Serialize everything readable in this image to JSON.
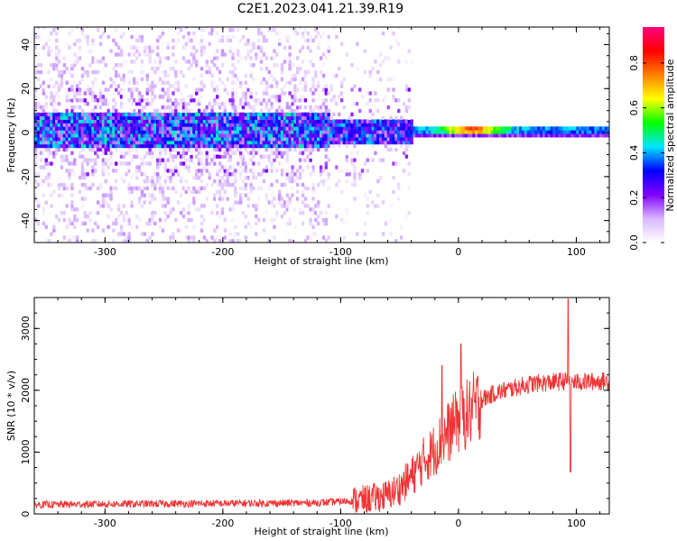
{
  "title": "C2E1.2023.041.21.39.R19",
  "chart_data": [
    {
      "type": "heatmap",
      "xlabel": "Height of straight line (km)",
      "ylabel": "Frequency (Hz)",
      "xlim": [
        -360,
        128
      ],
      "ylim": [
        -50,
        48
      ],
      "xticks": [
        -300,
        -200,
        -100,
        0,
        100
      ],
      "yticks": [
        -40,
        -20,
        0,
        20,
        40
      ],
      "colorbar": {
        "label": "Normalized spectral amplitude",
        "range": [
          0,
          0.96
        ],
        "ticks": [
          0.0,
          0.2,
          0.4,
          0.6,
          0.8
        ],
        "colormap": [
          "#ffffff",
          "#d9b8ff",
          "#8000ff",
          "#0000ff",
          "#00e5ff",
          "#00ff00",
          "#ffff00",
          "#ff8000",
          "#ff0000",
          "#ff0080"
        ]
      },
      "regions": [
        {
          "x_range": [
            -360,
            -110
          ],
          "description_values": {
            "core_band_hz": [
              -8,
              8
            ],
            "peak_amplitude": 0.35,
            "background_amplitude": 0.05
          }
        },
        {
          "x_range": [
            -110,
            -40
          ],
          "description_values": {
            "core_band_hz": [
              -6,
              6
            ],
            "peak_amplitude": 0.3,
            "background_amplitude": 0.03
          }
        },
        {
          "x_range": [
            -40,
            128
          ],
          "description_values": {
            "core_band_hz": [
              -2,
              2
            ],
            "peak_amplitude": 0.9,
            "background_amplitude": 0.0
          }
        }
      ],
      "grid": false
    },
    {
      "type": "line",
      "xlabel": "Height of straight line (km)",
      "ylabel": "SNR (10 * v/v)",
      "xlim": [
        -360,
        128
      ],
      "ylim": [
        0,
        3500
      ],
      "xticks": [
        -300,
        -200,
        -100,
        0,
        100
      ],
      "yticks": [
        0,
        1000,
        2000,
        3000
      ],
      "series": [
        {
          "color": "#ee3333",
          "envelope": {
            "x": [
              -360,
              -300,
              -200,
              -120,
              -100,
              -80,
              -60,
              -50,
              -40,
              -30,
              -20,
              -10,
              0,
              10,
              20,
              30,
              40,
              50,
              60,
              70,
              80,
              90,
              100,
              110,
              128
            ],
            "y": [
              150,
              160,
              170,
              180,
              200,
              230,
              300,
              420,
              600,
              850,
              1050,
              1300,
              1500,
              1650,
              1850,
              1950,
              2000,
              2050,
              2100,
              2120,
              2130,
              2150,
              2130,
              2140,
              2150
            ]
          },
          "spikes": [
            {
              "x": -14,
              "y": 2400
            },
            {
              "x": 2,
              "y": 2750
            },
            {
              "x": -2,
              "y": 1850
            },
            {
              "x": 93,
              "y": 3480
            },
            {
              "x": 95,
              "y": 680
            }
          ]
        }
      ],
      "grid": false
    }
  ]
}
